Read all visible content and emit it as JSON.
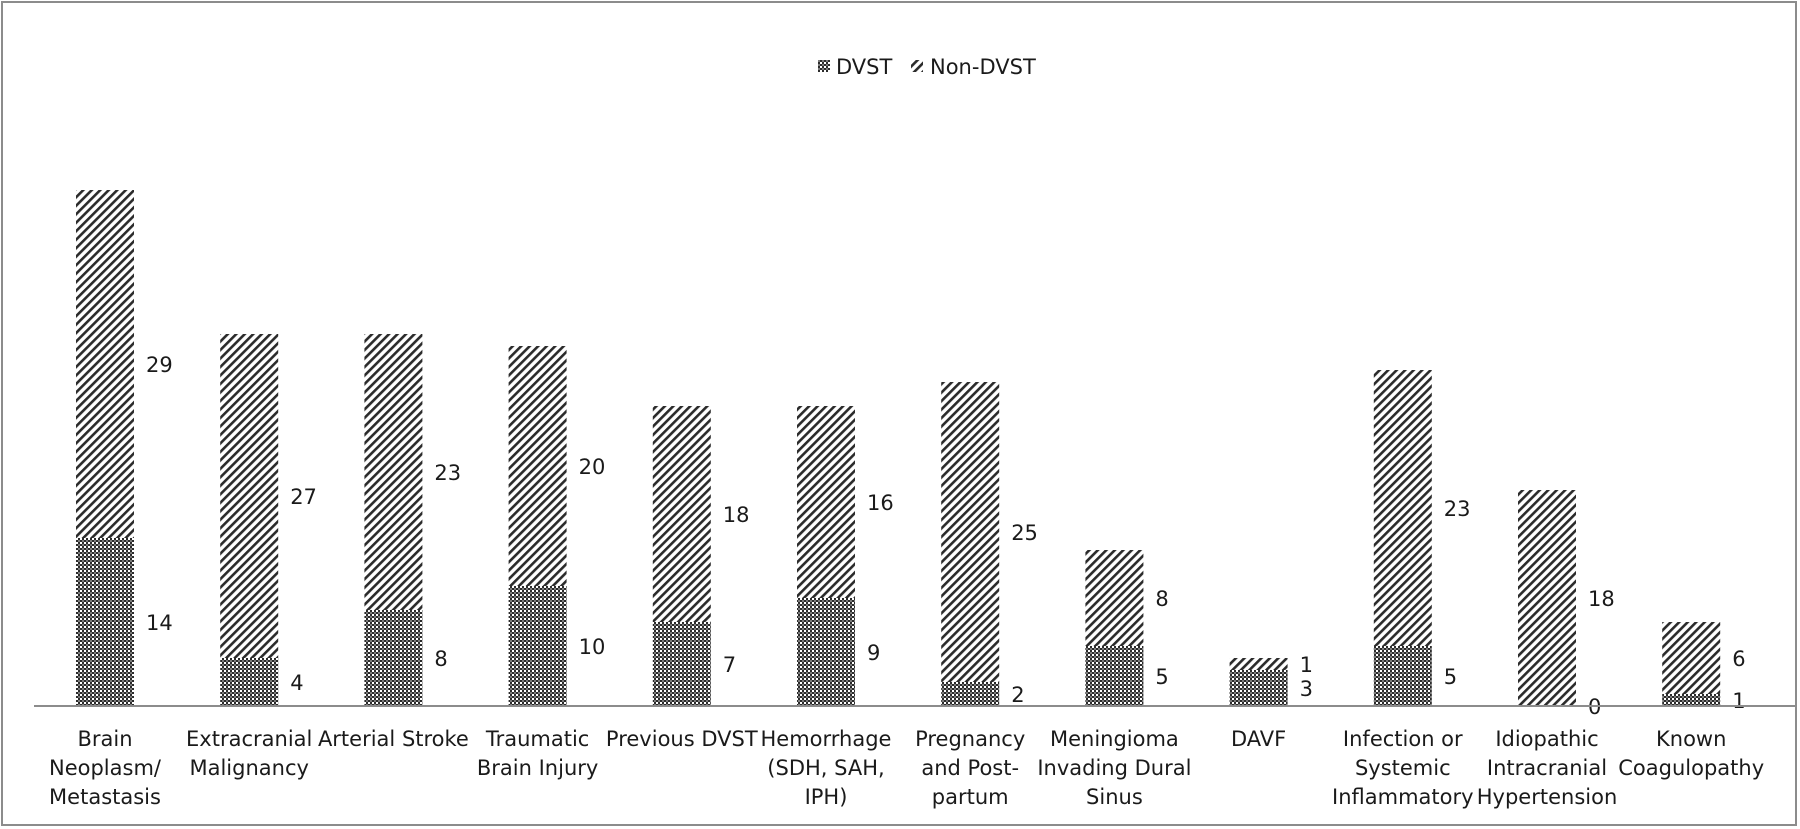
{
  "chart_data": {
    "type": "bar",
    "stacked": true,
    "categories": [
      [
        "Brain",
        "Neoplasm/",
        "Metastasis"
      ],
      [
        "Extracranial",
        "Malignancy"
      ],
      [
        "Arterial Stroke"
      ],
      [
        "Traumatic",
        "Brain Injury"
      ],
      [
        "Previous DVST"
      ],
      [
        "Hemorrhage",
        "(SDH, SAH,",
        "IPH)"
      ],
      [
        "Pregnancy",
        "and Post-",
        "partum"
      ],
      [
        "Meningioma",
        "Invading Dural",
        "Sinus"
      ],
      [
        "DAVF"
      ],
      [
        "Infection or",
        "Systemic",
        "Inflammatory"
      ],
      [
        "Idiopathic",
        "Intracranial",
        "Hypertension"
      ],
      [
        "Known",
        "Coagulopathy"
      ]
    ],
    "series": [
      {
        "name": "DVST",
        "values": [
          14,
          4,
          8,
          10,
          7,
          9,
          2,
          5,
          3,
          5,
          0,
          1
        ],
        "pattern": "checker",
        "color": "#3a3a3a"
      },
      {
        "name": "Non-DVST",
        "values": [
          29,
          27,
          23,
          20,
          18,
          16,
          25,
          8,
          1,
          23,
          18,
          6
        ],
        "pattern": "diagonal",
        "color": "#3a3a3a"
      }
    ],
    "legend_position": "top-center",
    "grid": false,
    "ylim": [
      0,
      45
    ]
  }
}
